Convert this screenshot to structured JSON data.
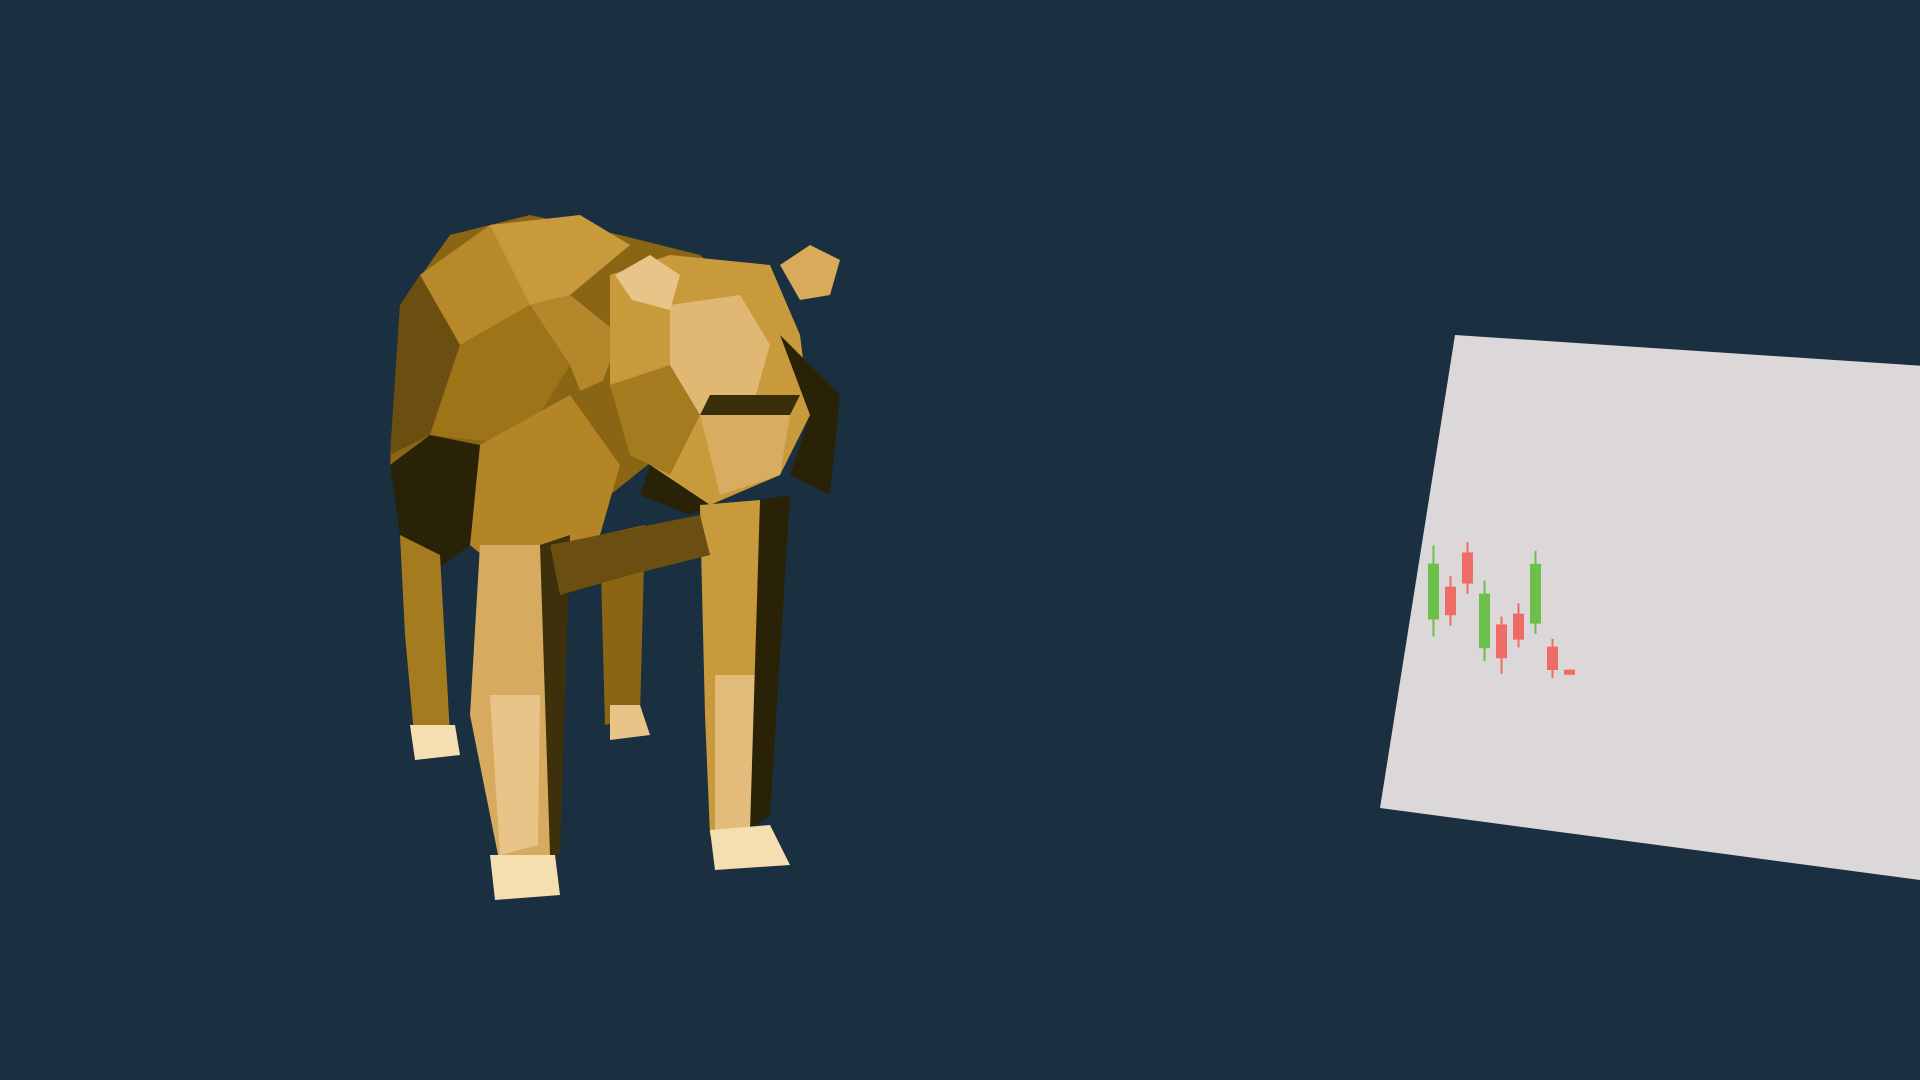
{
  "scene": {
    "background_color": "#1a2f3f",
    "bear_icon": "low-poly-bear-figure",
    "bear_colors": {
      "light": "#e8c489",
      "mid": "#c99a3c",
      "base": "#a97c1e",
      "dark": "#6b4f10",
      "shadow": "#2a2206",
      "hoof": "#f5dfb0"
    }
  },
  "card": {
    "background_color": "#dcd8da",
    "brand_text": "",
    "candles": [
      {
        "dir": "up",
        "open": 0.35,
        "close": 0.78,
        "low": 0.22,
        "high": 0.92
      },
      {
        "dir": "down",
        "open": 0.62,
        "close": 0.4,
        "low": 0.32,
        "high": 0.7
      },
      {
        "dir": "down",
        "open": 0.9,
        "close": 0.66,
        "low": 0.58,
        "high": 0.98
      },
      {
        "dir": "up",
        "open": 0.18,
        "close": 0.6,
        "low": 0.08,
        "high": 0.7
      },
      {
        "dir": "down",
        "open": 0.38,
        "close": 0.12,
        "low": 0.0,
        "high": 0.44
      },
      {
        "dir": "down",
        "open": 0.48,
        "close": 0.28,
        "low": 0.22,
        "high": 0.56
      },
      {
        "dir": "up",
        "open": 0.42,
        "close": 0.88,
        "low": 0.34,
        "high": 0.98
      },
      {
        "dir": "down",
        "open": 0.26,
        "close": 0.08,
        "low": 0.02,
        "high": 0.32
      },
      {
        "dir": "down",
        "open": 0.1,
        "close": 0.06,
        "low": 0.06,
        "high": 0.1
      }
    ],
    "up_color": "#6cc04a",
    "down_color": "#ef6b66"
  }
}
